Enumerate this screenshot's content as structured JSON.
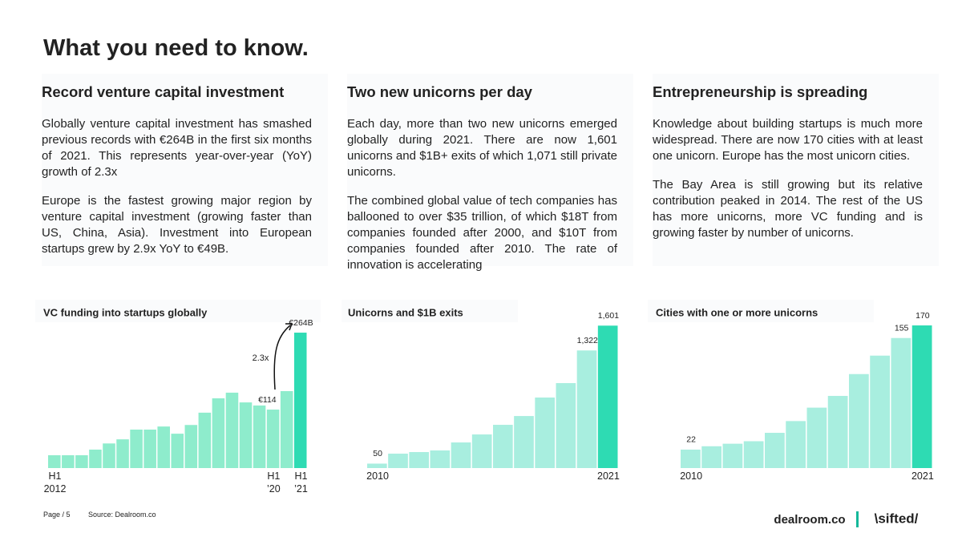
{
  "header": {
    "title": "What you need to know."
  },
  "columns": [
    {
      "heading": "Record venture capital investment",
      "paragraphs": [
        "Globally venture capital investment has smashed previous records with €264B in the first six months of 2021. This represents year-over-year (YoY) growth of 2.3x",
        "Europe is the fastest growing major region by venture capital investment (growing faster than US, China, Asia). Investment into European startups grew by 2.9x YoY to €49B."
      ]
    },
    {
      "heading": "Two new unicorns per day",
      "paragraphs": [
        "Each day, more than two new unicorns emerged globally during 2021. There are now 1,601 unicorns and $1B+ exits of which 1,071 still private unicorns.",
        "The combined global value of tech companies has ballooned to over $35 trillion, of which $18T from companies founded after 2000, and $10T from companies founded after 2010. The rate of innovation is accelerating"
      ]
    },
    {
      "heading": "Entrepreneurship is spreading",
      "paragraphs": [
        "Knowledge about building startups is much more widespread. There are now 170 cities with at least one unicorn. Europe has the most unicorn cities.",
        "The Bay Area is still growing but its relative contribution peaked in 2014. The rest of the US has more unicorns, more VC funding and is growing faster by number of unicorns."
      ]
    }
  ],
  "chart_data": [
    {
      "type": "bar",
      "title": "VC funding into startups globally",
      "categories": [
        "H1\n2012",
        null,
        null,
        null,
        null,
        null,
        null,
        null,
        null,
        null,
        null,
        null,
        null,
        null,
        null,
        null,
        "H1\n’20",
        null,
        "H1\n’21"
      ],
      "values": [
        25,
        25,
        25,
        36,
        48,
        56,
        75,
        75,
        81,
        67,
        84,
        108,
        136,
        147,
        128,
        122,
        114,
        150,
        264
      ],
      "value_labels": [
        null,
        null,
        null,
        null,
        null,
        null,
        null,
        null,
        null,
        null,
        null,
        null,
        null,
        null,
        null,
        null,
        "€114",
        null,
        "€264B"
      ],
      "colors": [
        "#8eeccc",
        "#8eeccc",
        "#8eeccc",
        "#8eeccc",
        "#8eeccc",
        "#8eeccc",
        "#8eeccc",
        "#8eeccc",
        "#8eeccc",
        "#8eeccc",
        "#8eeccc",
        "#8eeccc",
        "#8eeccc",
        "#8eeccc",
        "#8eeccc",
        "#8eeccc",
        "#8eeccc",
        "#8eeccc",
        "#2edbb3"
      ],
      "annotation": "2.3x"
    },
    {
      "type": "bar",
      "title": "Unicorns and $1B exits",
      "categories": [
        "2010",
        null,
        null,
        null,
        null,
        null,
        null,
        null,
        null,
        null,
        null,
        "2021"
      ],
      "values": [
        50,
        162,
        180,
        198,
        288,
        378,
        486,
        585,
        793,
        955,
        1322,
        1601
      ],
      "value_labels": [
        "50",
        null,
        null,
        null,
        null,
        null,
        null,
        null,
        null,
        null,
        "1,322",
        "1,601"
      ],
      "colors": [
        "#a8eedf",
        "#a8eedf",
        "#a8eedf",
        "#a8eedf",
        "#a8eedf",
        "#a8eedf",
        "#a8eedf",
        "#a8eedf",
        "#a8eedf",
        "#a8eedf",
        "#a8eedf",
        "#2edbb3"
      ]
    },
    {
      "type": "bar",
      "title": "Cities with one or more unicorns",
      "categories": [
        "2010",
        null,
        null,
        null,
        null,
        null,
        null,
        null,
        null,
        null,
        null,
        "2021"
      ],
      "values": [
        22,
        26,
        29,
        32,
        42,
        56,
        72,
        86,
        112,
        134,
        155,
        170
      ],
      "value_labels": [
        "22",
        null,
        null,
        null,
        null,
        null,
        null,
        null,
        null,
        null,
        "155",
        "170"
      ],
      "colors": [
        "#a8eedf",
        "#a8eedf",
        "#a8eedf",
        "#a8eedf",
        "#a8eedf",
        "#a8eedf",
        "#a8eedf",
        "#a8eedf",
        "#a8eedf",
        "#a8eedf",
        "#a8eedf",
        "#2edbb3"
      ]
    }
  ],
  "footer": {
    "page": "Page / 5",
    "source": "Source: Dealroom.co",
    "logos": [
      "dealroom.co",
      "\\sifted/"
    ]
  }
}
